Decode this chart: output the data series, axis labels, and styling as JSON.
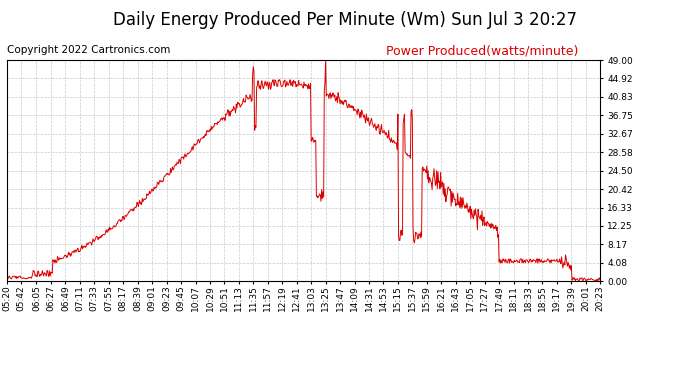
{
  "title": "Daily Energy Produced Per Minute (Wm) Sun Jul 3 20:27",
  "copyright": "Copyright 2022 Cartronics.com",
  "legend_label": "Power Produced(watts/minute)",
  "background_color": "#ffffff",
  "line_color": "#dd0000",
  "grid_color": "#bbbbbb",
  "title_color": "#000000",
  "copyright_color": "#000000",
  "legend_color": "#dd0000",
  "ylim": [
    0,
    49.0
  ],
  "yticks": [
    0.0,
    4.08,
    8.17,
    12.25,
    16.33,
    20.42,
    24.5,
    28.58,
    32.67,
    36.75,
    40.83,
    44.92,
    49.0
  ],
  "xtick_labels": [
    "05:20",
    "05:42",
    "06:05",
    "06:27",
    "06:49",
    "07:11",
    "07:33",
    "07:55",
    "08:17",
    "08:39",
    "09:01",
    "09:23",
    "09:45",
    "10:07",
    "10:29",
    "10:51",
    "11:13",
    "11:35",
    "11:57",
    "12:19",
    "12:41",
    "13:03",
    "13:25",
    "13:47",
    "14:09",
    "14:31",
    "14:53",
    "15:15",
    "15:37",
    "15:59",
    "16:21",
    "16:43",
    "17:05",
    "17:27",
    "17:49",
    "18:11",
    "18:33",
    "18:55",
    "19:17",
    "19:39",
    "20:01",
    "20:23"
  ],
  "title_fontsize": 12,
  "copyright_fontsize": 7.5,
  "legend_fontsize": 9,
  "tick_fontsize": 6.5
}
